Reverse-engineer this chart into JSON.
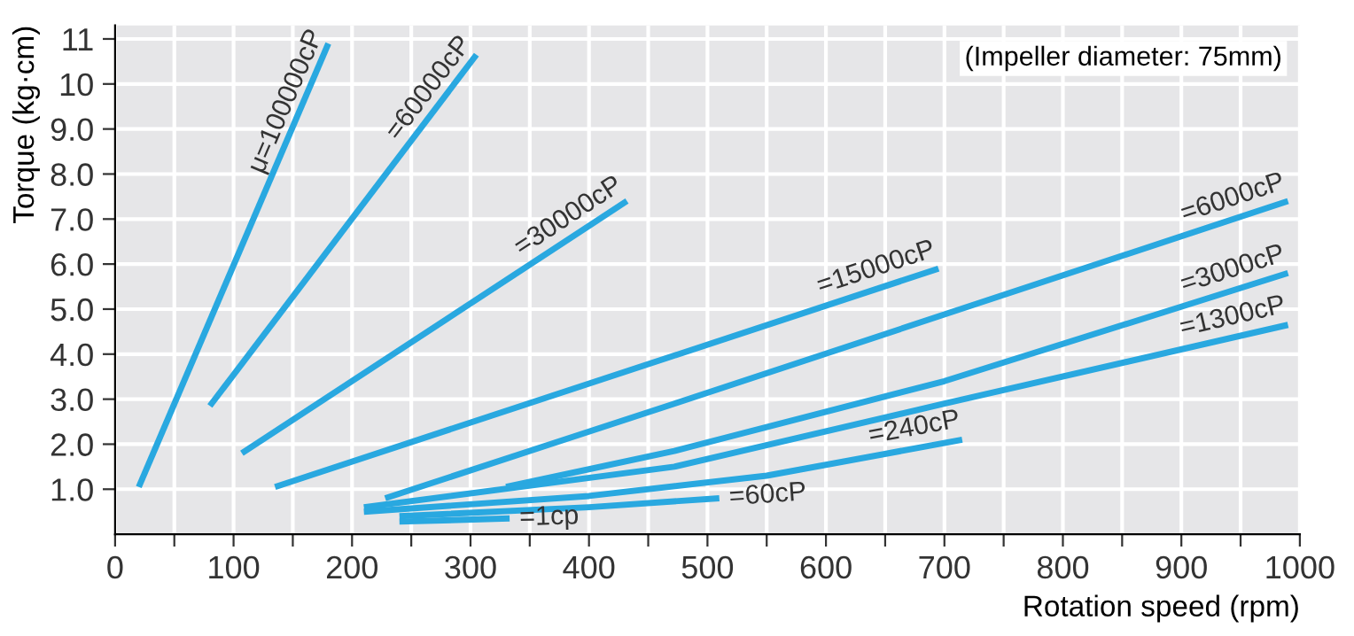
{
  "chart_data": {
    "type": "line",
    "xlabel": "Rotation speed (rpm)",
    "ylabel": "Torque (kg·cm)",
    "annotations": [
      "(Impeller diameter: 75mm)"
    ],
    "xlim": [
      0,
      1000
    ],
    "ylim": [
      0,
      11.3
    ],
    "xticks": [
      0,
      {
        "value": 50,
        "label": null
      },
      100,
      {
        "value": 150,
        "label": null
      },
      200,
      {
        "value": 250,
        "label": null
      },
      300,
      {
        "value": 350,
        "label": null
      },
      400,
      {
        "value": 450,
        "label": null
      },
      500,
      {
        "value": 550,
        "label": null
      },
      600,
      {
        "value": 650,
        "label": null
      },
      700,
      {
        "value": 750,
        "label": null
      },
      800,
      {
        "value": 850,
        "label": null
      },
      900,
      {
        "value": 950,
        "label": null
      },
      1000
    ],
    "yticks": [
      {
        "value": 1,
        "label": "1.0"
      },
      {
        "value": 2,
        "label": "2.0"
      },
      {
        "value": 3,
        "label": "3.0"
      },
      {
        "value": 4,
        "label": "4.0"
      },
      {
        "value": 5,
        "label": "5.0"
      },
      {
        "value": 6,
        "label": "6.0"
      },
      {
        "value": 7,
        "label": "7.0"
      },
      {
        "value": 8,
        "label": "8.0"
      },
      {
        "value": 9,
        "label": "9.0"
      },
      10,
      11
    ],
    "grid": true,
    "legend": false,
    "marker": "none",
    "line_style": "solid",
    "series": [
      {
        "name": "μ=100000cP",
        "color": "#29a8e0",
        "x": [
          20,
          180
        ],
        "values": [
          1.05,
          10.9
        ]
      },
      {
        "name": "=60000cP",
        "color": "#29a8e0",
        "x": [
          80,
          305
        ],
        "values": [
          2.85,
          10.65
        ]
      },
      {
        "name": "=30000cP",
        "color": "#29a8e0",
        "x": [
          107,
          432
        ],
        "values": [
          1.8,
          7.4
        ]
      },
      {
        "name": "=15000cP",
        "color": "#29a8e0",
        "x": [
          135,
          695
        ],
        "values": [
          1.05,
          5.9
        ]
      },
      {
        "name": "=6000cP",
        "color": "#29a8e0",
        "x": [
          228,
          472,
          990
        ],
        "values": [
          0.8,
          2.9,
          7.4
        ]
      },
      {
        "name": "=3000cP",
        "color": "#29a8e0",
        "x": [
          330,
          472,
          700,
          990
        ],
        "values": [
          1.05,
          1.85,
          3.4,
          5.8
        ]
      },
      {
        "name": "=1300cP",
        "color": "#29a8e0",
        "x": [
          210,
          472,
          700,
          990
        ],
        "values": [
          0.6,
          1.5,
          2.9,
          4.65
        ]
      },
      {
        "name": "=240cP",
        "color": "#29a8e0",
        "x": [
          210,
          400,
          550,
          715
        ],
        "values": [
          0.5,
          0.85,
          1.3,
          2.1
        ]
      },
      {
        "name": "=60cP",
        "color": "#29a8e0",
        "x": [
          240,
          400,
          510
        ],
        "values": [
          0.4,
          0.6,
          0.8
        ]
      },
      {
        "name": "=1cp",
        "color": "#29a8e0",
        "x": [
          240,
          333
        ],
        "values": [
          0.28,
          0.35
        ]
      }
    ]
  }
}
